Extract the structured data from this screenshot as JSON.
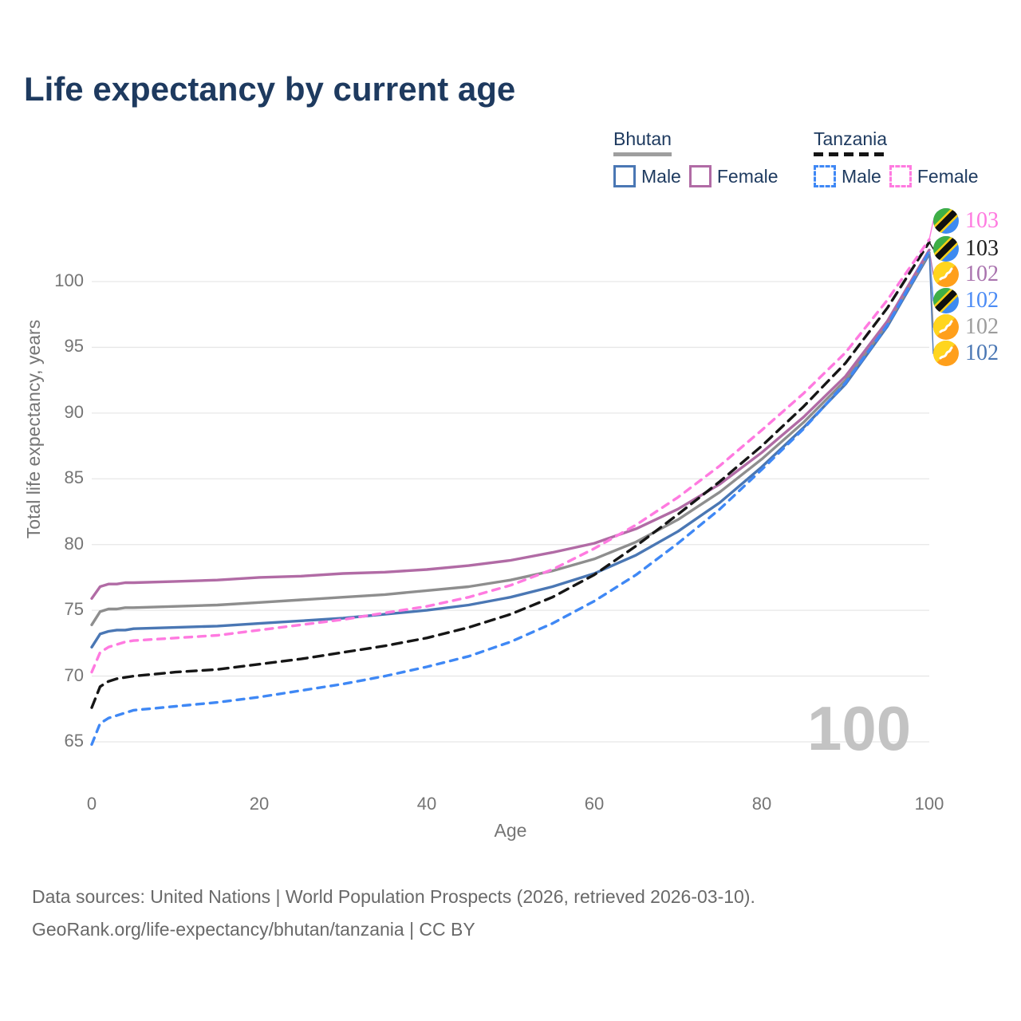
{
  "title": "Life expectancy by current age",
  "legend": {
    "groups": [
      {
        "label": "Bhutan",
        "line_style": "solid",
        "line_color": "#9e9e9e",
        "items": [
          {
            "label": "Male",
            "color": "#4a77b4",
            "dashed": false
          },
          {
            "label": "Female",
            "color": "#b16ba5",
            "dashed": false
          }
        ]
      },
      {
        "label": "Tanzania",
        "line_style": "dashed",
        "line_color": "#141414",
        "items": [
          {
            "label": "Male",
            "color": "#3f88f5",
            "dashed": true
          },
          {
            "label": "Female",
            "color": "#ff7ae0",
            "dashed": true
          }
        ]
      }
    ]
  },
  "axes": {
    "x": {
      "label": "Age",
      "ticks": [
        0,
        20,
        40,
        60,
        80,
        100
      ]
    },
    "y": {
      "label": "Total life expectancy, years",
      "ticks": [
        65,
        70,
        75,
        80,
        85,
        90,
        95,
        100
      ]
    }
  },
  "watermark": "100",
  "end_labels": [
    {
      "value": "103",
      "color": "#ff7ae0",
      "flag": "tanzania",
      "series": "Tanzania Female",
      "end_value": 103.2
    },
    {
      "value": "103",
      "color": "#1d1d1d",
      "flag": "tanzania",
      "series": "Tanzania Total",
      "end_value": 103.0
    },
    {
      "value": "102",
      "color": "#a973ae",
      "flag": "bhutan",
      "series": "Bhutan Female",
      "end_value": 102.4
    },
    {
      "value": "102",
      "color": "#4b8bf5",
      "flag": "tanzania",
      "series": "Tanzania Male",
      "end_value": 102.3
    },
    {
      "value": "102",
      "color": "#9c9c9c",
      "flag": "bhutan",
      "series": "Bhutan Total",
      "end_value": 102.2
    },
    {
      "value": "102",
      "color": "#4a77b4",
      "flag": "bhutan",
      "series": "Bhutan Male",
      "end_value": 102.1
    }
  ],
  "footer": {
    "line1": "Data sources: United Nations | World Population Prospects (2026, retrieved 2026-03-10).",
    "line2": "GeoRank.org/life-expectancy/bhutan/tanzania | CC BY"
  },
  "chart_data": {
    "type": "line",
    "title": "Life expectancy by current age",
    "xlabel": "Age",
    "ylabel": "Total life expectancy, years",
    "x_range": [
      0,
      100
    ],
    "y_range": [
      63,
      104
    ],
    "y_ticks": [
      65,
      70,
      75,
      80,
      85,
      90,
      95,
      100
    ],
    "grid": "horizontal",
    "legend_position": "top-right",
    "x": [
      0,
      1,
      2,
      3,
      4,
      5,
      10,
      15,
      20,
      25,
      30,
      35,
      40,
      45,
      50,
      55,
      60,
      65,
      70,
      75,
      80,
      85,
      90,
      95,
      100
    ],
    "series": [
      {
        "name": "Bhutan Male",
        "country": "Bhutan",
        "sex": "Male",
        "style": "solid",
        "color": "#4a77b4",
        "end_label": 102,
        "values": [
          72.2,
          73.2,
          73.4,
          73.5,
          73.5,
          73.6,
          73.7,
          73.8,
          74.0,
          74.2,
          74.4,
          74.7,
          75.0,
          75.4,
          76.0,
          76.8,
          77.8,
          79.2,
          81.0,
          83.2,
          85.9,
          88.9,
          92.2,
          96.6,
          102.1
        ]
      },
      {
        "name": "Bhutan Total",
        "country": "Bhutan",
        "sex": "Total",
        "style": "solid",
        "color": "#8e8e8e",
        "end_label": 102,
        "values": [
          73.9,
          74.9,
          75.1,
          75.1,
          75.2,
          75.2,
          75.3,
          75.4,
          75.6,
          75.8,
          76.0,
          76.2,
          76.5,
          76.8,
          77.3,
          78.0,
          78.9,
          80.2,
          81.9,
          84.0,
          86.5,
          89.3,
          92.5,
          96.8,
          102.2
        ]
      },
      {
        "name": "Bhutan Female",
        "country": "Bhutan",
        "sex": "Female",
        "style": "solid",
        "color": "#b16ba5",
        "end_label": 102,
        "values": [
          75.9,
          76.8,
          77.0,
          77.0,
          77.1,
          77.1,
          77.2,
          77.3,
          77.5,
          77.6,
          77.8,
          77.9,
          78.1,
          78.4,
          78.8,
          79.4,
          80.1,
          81.2,
          82.7,
          84.6,
          87.0,
          89.7,
          92.8,
          97.0,
          102.4
        ]
      },
      {
        "name": "Tanzania Male",
        "country": "Tanzania",
        "sex": "Male",
        "style": "dashed",
        "color": "#3f88f5",
        "end_label": 102,
        "values": [
          64.8,
          66.4,
          66.8,
          67.0,
          67.2,
          67.4,
          67.7,
          68.0,
          68.4,
          68.9,
          69.4,
          70.0,
          70.7,
          71.5,
          72.6,
          74.0,
          75.7,
          77.7,
          80.1,
          82.7,
          85.7,
          88.8,
          92.3,
          96.7,
          102.3
        ]
      },
      {
        "name": "Tanzania Total",
        "country": "Tanzania",
        "sex": "Total",
        "style": "dashed",
        "color": "#161616",
        "end_label": 103,
        "values": [
          67.6,
          69.2,
          69.6,
          69.8,
          69.9,
          70.0,
          70.3,
          70.5,
          70.9,
          71.3,
          71.8,
          72.3,
          72.9,
          73.7,
          74.7,
          76.0,
          77.7,
          79.9,
          82.3,
          84.8,
          87.5,
          90.5,
          93.8,
          98.0,
          103.0
        ]
      },
      {
        "name": "Tanzania Female",
        "country": "Tanzania",
        "sex": "Female",
        "style": "dashed",
        "color": "#ff7ae0",
        "end_label": 103,
        "values": [
          70.3,
          71.8,
          72.2,
          72.4,
          72.6,
          72.7,
          72.9,
          73.1,
          73.5,
          73.9,
          74.3,
          74.8,
          75.3,
          76.0,
          76.9,
          78.1,
          79.7,
          81.5,
          83.6,
          86.0,
          88.7,
          91.5,
          94.6,
          98.6,
          103.2
        ]
      }
    ]
  }
}
